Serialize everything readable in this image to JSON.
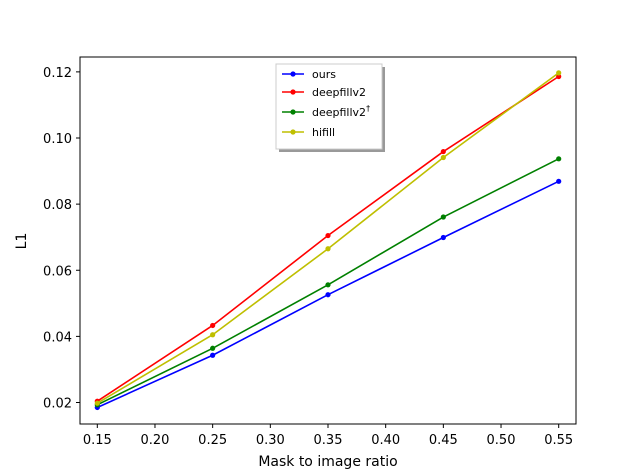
{
  "chart_data": {
    "type": "line",
    "title": "",
    "xlabel": "Mask to image ratio",
    "ylabel": "L1",
    "x": [
      0.15,
      0.25,
      0.35,
      0.45,
      0.55
    ],
    "xticks": [
      "0.15",
      "0.20",
      "0.25",
      "0.30",
      "0.35",
      "0.40",
      "0.45",
      "0.50",
      "0.55"
    ],
    "yticks": [
      "0.02",
      "0.04",
      "0.06",
      "0.08",
      "0.10",
      "0.12"
    ],
    "xlim": [
      0.135,
      0.565
    ],
    "ylim": [
      0.0135,
      0.1245
    ],
    "grid": false,
    "legend_position": "top-center",
    "series": [
      {
        "name": "ours",
        "name_sup": "",
        "color": "#0000ff",
        "values": [
          0.0185,
          0.0343,
          0.0526,
          0.0699,
          0.0869
        ]
      },
      {
        "name": "deepfillv2",
        "name_sup": "",
        "color": "#ff0000",
        "values": [
          0.0204,
          0.0433,
          0.0705,
          0.0959,
          0.1186
        ]
      },
      {
        "name": "deepfillv2",
        "name_sup": "†",
        "color": "#008000",
        "values": [
          0.0193,
          0.0364,
          0.0556,
          0.0761,
          0.0937
        ]
      },
      {
        "name": "hifill",
        "name_sup": "",
        "color": "#bfbf00",
        "values": [
          0.0198,
          0.0405,
          0.0665,
          0.0941,
          0.1197
        ]
      }
    ]
  }
}
